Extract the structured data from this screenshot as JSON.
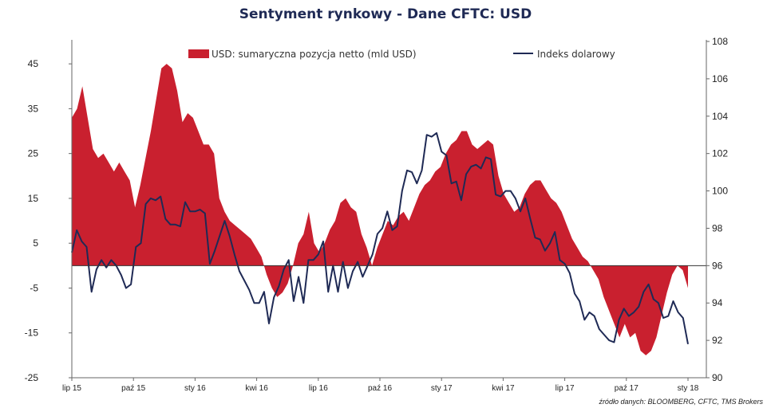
{
  "title": "Sentyment rynkowy - Dane CFTC:  USD",
  "source_note": "źródło danych: BLOOMBERG, CFTC, TMS Brokers",
  "colors": {
    "area": "#c9202f",
    "line": "#1f2a55",
    "axis": "#666666"
  },
  "chart_data": {
    "type": "area",
    "x_labels": [
      "lip 15",
      "paź 15",
      "sty 16",
      "kwi 16",
      "lip 16",
      "paź 16",
      "sty 17",
      "kwi 17",
      "lip 17",
      "paź 17",
      "sty 18"
    ],
    "y_left": {
      "ticks": [
        45,
        35,
        25,
        15,
        5,
        -5,
        -15,
        -25
      ],
      "ylim": [
        -25,
        50
      ]
    },
    "y_right": {
      "ticks": [
        108,
        106,
        104,
        102,
        100,
        98,
        96,
        94,
        92,
        90
      ],
      "ylim": [
        90,
        108
      ]
    },
    "grid": false,
    "legend": "top",
    "series": [
      {
        "name": "USD: sumaryczna pozycja netto (mld USD)",
        "axis": "left",
        "type": "area",
        "values": [
          33,
          35,
          40,
          33,
          26,
          24,
          25,
          23,
          21,
          23,
          21,
          19,
          13,
          18,
          24,
          30,
          37,
          44,
          45,
          44,
          39,
          32,
          34,
          33,
          30,
          27,
          27,
          25,
          15,
          12,
          10,
          9,
          8,
          7,
          6,
          4,
          2,
          -2,
          -5,
          -7,
          -6,
          -4,
          0,
          5,
          7,
          12,
          5,
          3,
          5,
          8,
          10,
          14,
          15,
          13,
          12,
          7,
          4,
          0,
          4,
          7,
          10,
          9,
          11,
          12,
          10,
          13,
          16,
          18,
          19,
          21,
          22,
          25,
          27,
          28,
          30,
          30,
          27,
          26,
          27,
          28,
          27,
          20,
          16,
          14,
          12,
          13,
          16,
          18,
          19,
          19,
          17,
          15,
          14,
          12,
          9,
          6,
          4,
          2,
          1,
          -1,
          -3,
          -7,
          -10,
          -13,
          -16,
          -13,
          -16,
          -15,
          -19,
          -20,
          -19,
          -16,
          -11,
          -6,
          -2,
          0,
          -1,
          -5
        ],
        "x_start": 0.0,
        "x_end": 10.0
      },
      {
        "name": "Indeks dolarowy",
        "axis": "right",
        "type": "line",
        "values": [
          96.7,
          97.9,
          97.3,
          97.0,
          94.6,
          95.8,
          96.3,
          95.9,
          96.3,
          96.0,
          95.5,
          94.8,
          95.0,
          97.0,
          97.2,
          99.3,
          99.6,
          99.5,
          99.7,
          98.5,
          98.2,
          98.2,
          98.1,
          99.4,
          98.9,
          98.9,
          99.0,
          98.8,
          96.1,
          96.8,
          97.6,
          98.4,
          97.6,
          96.6,
          95.7,
          95.2,
          94.7,
          94.0,
          94.0,
          94.6,
          92.9,
          94.3,
          94.9,
          95.8,
          96.3,
          94.1,
          95.4,
          94.0,
          96.3,
          96.3,
          96.6,
          97.3,
          94.6,
          96.0,
          94.6,
          96.2,
          94.8,
          95.7,
          96.2,
          95.4,
          96.0,
          96.6,
          97.7,
          98.0,
          98.9,
          97.9,
          98.1,
          100.0,
          101.1,
          101.0,
          100.4,
          101.1,
          103.0,
          102.9,
          103.1,
          102.1,
          101.9,
          100.4,
          100.5,
          99.5,
          100.9,
          101.3,
          101.4,
          101.2,
          101.8,
          101.7,
          99.8,
          99.7,
          100.0,
          100.0,
          99.6,
          98.9,
          99.6,
          98.5,
          97.5,
          97.4,
          96.8,
          97.2,
          97.8,
          96.3,
          96.1,
          95.6,
          94.5,
          94.1,
          93.1,
          93.5,
          93.3,
          92.6,
          92.3,
          92.0,
          91.9,
          93.1,
          93.7,
          93.3,
          93.5,
          93.8,
          94.6,
          95.0,
          94.2,
          94.0,
          93.2,
          93.3,
          94.1,
          93.5,
          93.2,
          91.8
        ]
      }
    ]
  }
}
